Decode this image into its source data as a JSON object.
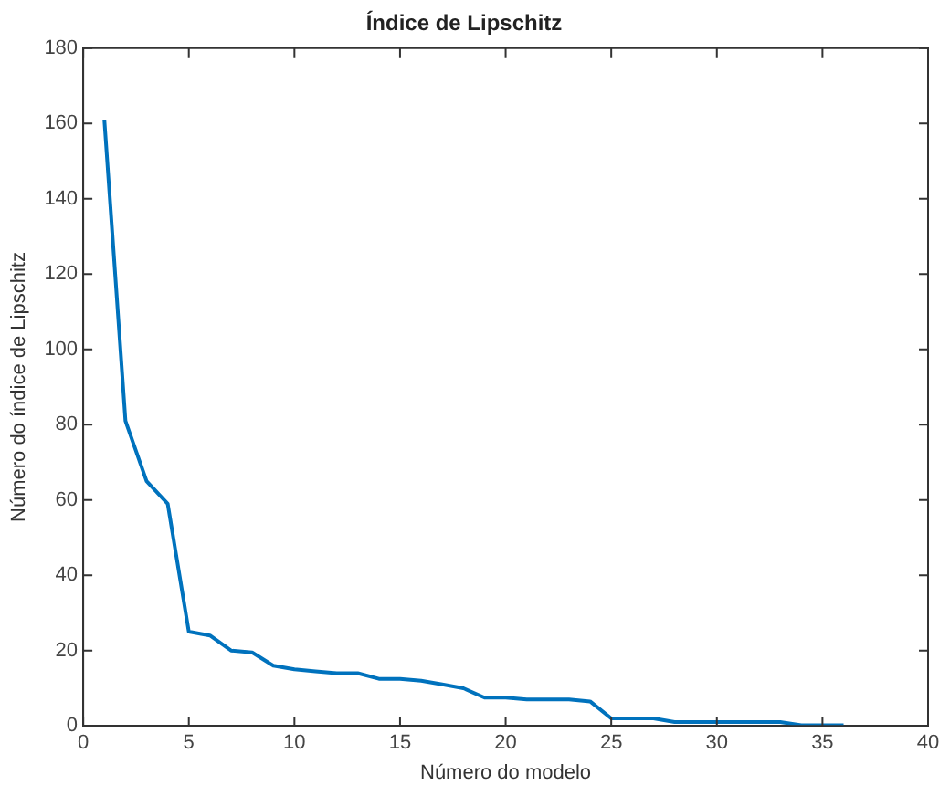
{
  "chart_data": {
    "type": "line",
    "title": "Índice de Lipschitz",
    "xlabel": "Número do modelo",
    "ylabel": "Número do índice de Lipschitz",
    "x": [
      1,
      2,
      3,
      4,
      5,
      6,
      7,
      8,
      9,
      10,
      11,
      12,
      13,
      14,
      15,
      16,
      17,
      18,
      19,
      20,
      21,
      22,
      23,
      24,
      25,
      26,
      27,
      28,
      29,
      30,
      31,
      32,
      33,
      34,
      35,
      36
    ],
    "series": [
      {
        "color": "#0072bd",
        "values": [
          161,
          81,
          65,
          59,
          25,
          24,
          20,
          19.5,
          16,
          15,
          14.5,
          14,
          14,
          12.5,
          12.5,
          12,
          11,
          10,
          7.5,
          7.5,
          7,
          7,
          7,
          6.5,
          2,
          2,
          2,
          1,
          1,
          1,
          1,
          1,
          1,
          0.2,
          0.2,
          0.2
        ]
      }
    ],
    "xlim": [
      0,
      40
    ],
    "xticks": [
      0,
      5,
      10,
      15,
      20,
      25,
      30,
      35,
      40
    ],
    "ylim": [
      0,
      180
    ],
    "yticks": [
      0,
      20,
      40,
      60,
      80,
      100,
      120,
      140,
      160,
      180
    ],
    "grid": false,
    "legend": false,
    "marker": "none",
    "line_style": "solid"
  }
}
